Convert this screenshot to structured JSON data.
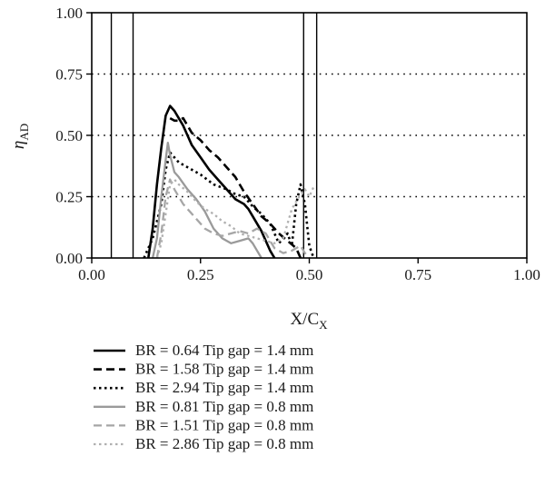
{
  "chart_data": {
    "type": "line",
    "xlabel_main": "X/C",
    "xlabel_sub": "X",
    "ylabel_main": "η",
    "ylabel_sub": "AD",
    "xlim": [
      0,
      1
    ],
    "ylim": [
      0,
      1
    ],
    "xticks": [
      "0.00",
      "0.25",
      "0.50",
      "0.75",
      "1.00"
    ],
    "yticks": [
      "0.00",
      "0.25",
      "0.50",
      "0.75",
      "1.00"
    ],
    "grid": "horizontal dotted",
    "reference_lines_x": [
      0.045,
      0.095,
      0.487,
      0.517
    ],
    "legend_position": "bottom",
    "series": [
      {
        "name": "BR = 0.64 Tip gap = 1.4 mm",
        "color": "#000000",
        "dash": "solid",
        "width": 2.6,
        "x": [
          0.13,
          0.14,
          0.15,
          0.16,
          0.17,
          0.18,
          0.19,
          0.2,
          0.21,
          0.22,
          0.23,
          0.25,
          0.27,
          0.29,
          0.31,
          0.33,
          0.35,
          0.36,
          0.37,
          0.38,
          0.39,
          0.4,
          0.41,
          0.42
        ],
        "y": [
          0.0,
          0.12,
          0.3,
          0.45,
          0.58,
          0.62,
          0.6,
          0.57,
          0.54,
          0.5,
          0.46,
          0.41,
          0.36,
          0.32,
          0.28,
          0.24,
          0.22,
          0.2,
          0.17,
          0.14,
          0.11,
          0.07,
          0.03,
          0.0
        ]
      },
      {
        "name": "BR = 1.58 Tip gap = 1.4 mm",
        "color": "#000000",
        "dash": "9,5",
        "width": 2.6,
        "x": [
          0.18,
          0.19,
          0.2,
          0.21,
          0.22,
          0.23,
          0.25,
          0.27,
          0.29,
          0.31,
          0.33,
          0.35,
          0.37,
          0.39,
          0.41,
          0.43,
          0.45,
          0.47,
          0.48
        ],
        "y": [
          0.57,
          0.56,
          0.56,
          0.57,
          0.54,
          0.51,
          0.48,
          0.44,
          0.41,
          0.37,
          0.33,
          0.27,
          0.22,
          0.17,
          0.14,
          0.1,
          0.07,
          0.04,
          0.0
        ]
      },
      {
        "name": "BR = 2.94 Tip gap = 1.4 mm",
        "color": "#000000",
        "dash": "2.5,3.5",
        "width": 2.6,
        "x": [
          0.12,
          0.14,
          0.16,
          0.17,
          0.18,
          0.19,
          0.2,
          0.21,
          0.23,
          0.25,
          0.28,
          0.31,
          0.33,
          0.35,
          0.37,
          0.39,
          0.41,
          0.42,
          0.43,
          0.45,
          0.46,
          0.47,
          0.48,
          0.49,
          0.5,
          0.51
        ],
        "y": [
          0.0,
          0.08,
          0.22,
          0.36,
          0.43,
          0.41,
          0.39,
          0.38,
          0.36,
          0.34,
          0.3,
          0.28,
          0.26,
          0.25,
          0.21,
          0.18,
          0.14,
          0.1,
          0.06,
          0.1,
          0.05,
          0.22,
          0.3,
          0.22,
          0.05,
          0.0
        ]
      },
      {
        "name": "BR = 0.81 Tip gap = 0.8 mm",
        "color": "#9a9a9a",
        "dash": "solid",
        "width": 2.3,
        "x": [
          0.14,
          0.15,
          0.16,
          0.17,
          0.175,
          0.18,
          0.19,
          0.2,
          0.22,
          0.24,
          0.26,
          0.28,
          0.3,
          0.32,
          0.34,
          0.36,
          0.37,
          0.38,
          0.39
        ],
        "y": [
          0.0,
          0.08,
          0.25,
          0.4,
          0.47,
          0.42,
          0.35,
          0.33,
          0.28,
          0.24,
          0.19,
          0.12,
          0.08,
          0.06,
          0.07,
          0.08,
          0.06,
          0.03,
          0.0
        ]
      },
      {
        "name": "BR = 1.51 Tip gap = 0.8 mm",
        "color": "#a6a6a6",
        "dash": "9,5",
        "width": 2.3,
        "x": [
          0.15,
          0.16,
          0.17,
          0.18,
          0.19,
          0.2,
          0.21,
          0.22,
          0.24,
          0.26,
          0.28,
          0.3,
          0.32,
          0.34,
          0.36,
          0.38,
          0.4,
          0.42,
          0.44,
          0.46,
          0.48,
          0.49,
          0.5
        ],
        "y": [
          0.0,
          0.1,
          0.25,
          0.32,
          0.28,
          0.25,
          0.22,
          0.2,
          0.16,
          0.12,
          0.1,
          0.09,
          0.1,
          0.11,
          0.1,
          0.12,
          0.1,
          0.04,
          0.02,
          0.03,
          0.05,
          0.02,
          0.0
        ]
      },
      {
        "name": "BR = 2.86 Tip gap = 0.8 mm",
        "color": "#b0b0b0",
        "dash": "2.5,3.5",
        "width": 2.3,
        "x": [
          0.15,
          0.16,
          0.17,
          0.18,
          0.19,
          0.2,
          0.22,
          0.24,
          0.26,
          0.28,
          0.3,
          0.32,
          0.34,
          0.36,
          0.38,
          0.4,
          0.42,
          0.44,
          0.46,
          0.48,
          0.49,
          0.5,
          0.51
        ],
        "y": [
          0.0,
          0.06,
          0.18,
          0.3,
          0.32,
          0.3,
          0.27,
          0.23,
          0.2,
          0.18,
          0.15,
          0.13,
          0.1,
          0.09,
          0.08,
          0.07,
          0.06,
          0.08,
          0.2,
          0.26,
          0.28,
          0.25,
          0.29
        ]
      }
    ]
  }
}
